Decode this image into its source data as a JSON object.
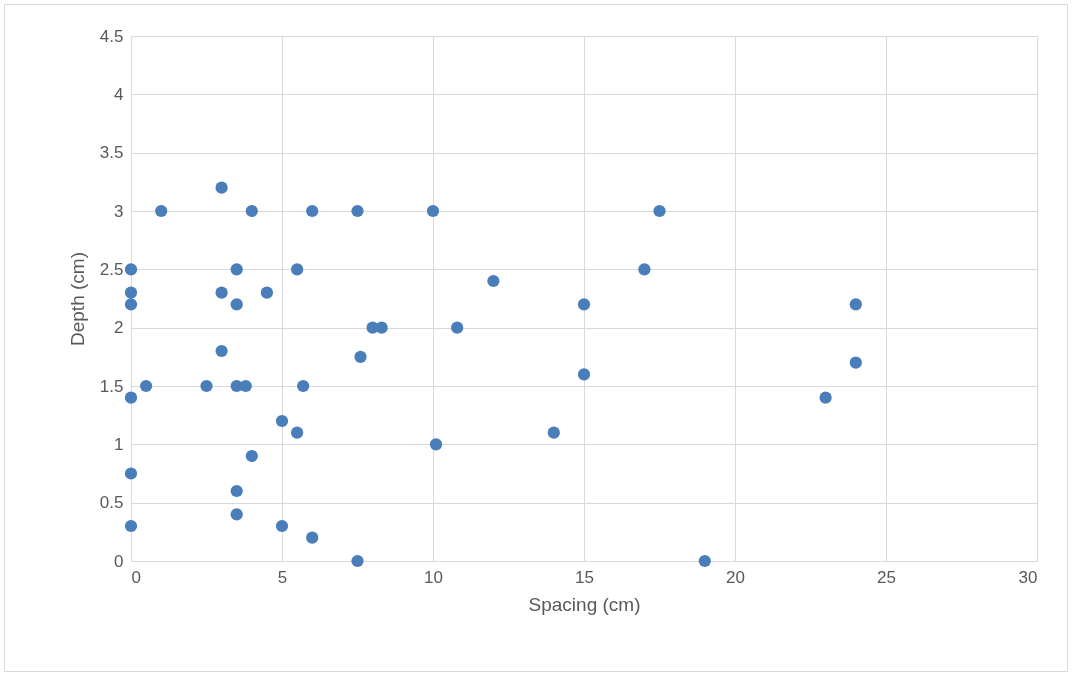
{
  "chart_data": {
    "type": "scatter",
    "xlabel": "Spacing (cm)",
    "ylabel": "Depth (cm)",
    "x": [
      3,
      1,
      4,
      6,
      7.5,
      10,
      17.5,
      0,
      3.5,
      5.5,
      17,
      0,
      3,
      4.5,
      12,
      0,
      3.5,
      15,
      24,
      8,
      8.3,
      10.8,
      3,
      7.6,
      24,
      0.5,
      2.5,
      3.5,
      3.8,
      5.7,
      15,
      0,
      23,
      5,
      5.5,
      14,
      10.1,
      4,
      0,
      3.5,
      3.5,
      0,
      5,
      6,
      7.5,
      19
    ],
    "series": [
      {
        "color": "#4a7ebb",
        "values": [
          3.2,
          3,
          3,
          3,
          3,
          3,
          3,
          2.5,
          2.5,
          2.5,
          2.5,
          2.3,
          2.3,
          2.3,
          2.4,
          2.2,
          2.2,
          2.2,
          2.2,
          2,
          2,
          2,
          1.8,
          1.75,
          1.7,
          1.5,
          1.5,
          1.5,
          1.5,
          1.5,
          1.6,
          1.4,
          1.4,
          1.2,
          1.1,
          1.1,
          1,
          0.9,
          0.75,
          0.6,
          0.4,
          0.3,
          0.3,
          0.2,
          0,
          0
        ]
      }
    ],
    "xlim": [
      0,
      30
    ],
    "xticks": [
      0,
      5,
      10,
      15,
      20,
      25,
      30
    ],
    "ylim": [
      0,
      4.5
    ],
    "yticks": [
      0,
      0.5,
      1,
      1.5,
      2,
      2.5,
      3,
      3.5,
      4,
      4.5
    ],
    "grid": true,
    "marker": "circle"
  }
}
